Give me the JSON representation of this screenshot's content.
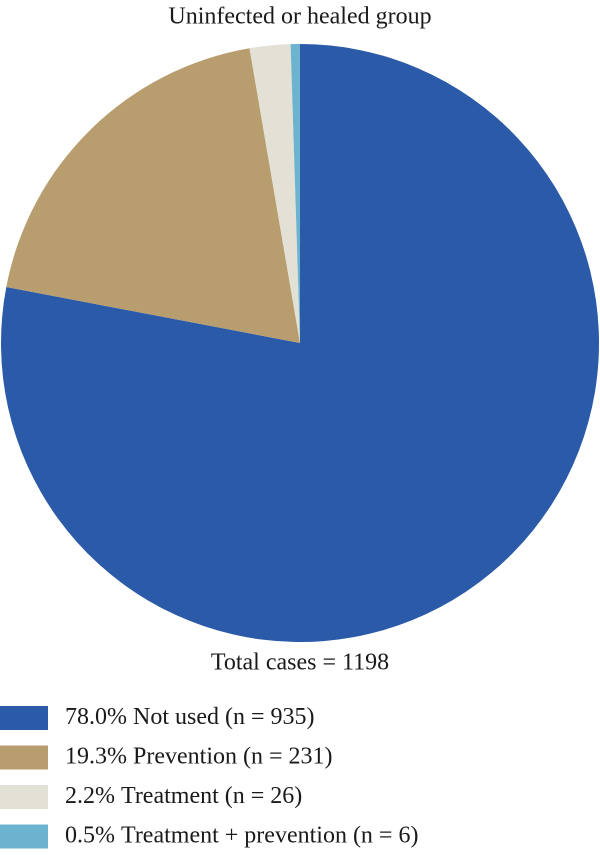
{
  "chart_data": {
    "type": "pie",
    "title": "Uninfected or healed group",
    "annotation": "Total cases = 1198",
    "categories": [
      "Not used (n = 935)",
      "Prevention (n = 231)",
      "Treatment (n = 26)",
      "Treatment + prevention (n = 6)"
    ],
    "values": [
      78.0,
      19.3,
      2.2,
      0.5
    ],
    "value_labels": [
      "78.0%",
      "19.3%",
      "2.2%",
      "0.5%"
    ],
    "colors": [
      "#2b5ba8",
      "#b89d6e",
      "#e3e0d6",
      "#6bb3cf"
    ]
  }
}
